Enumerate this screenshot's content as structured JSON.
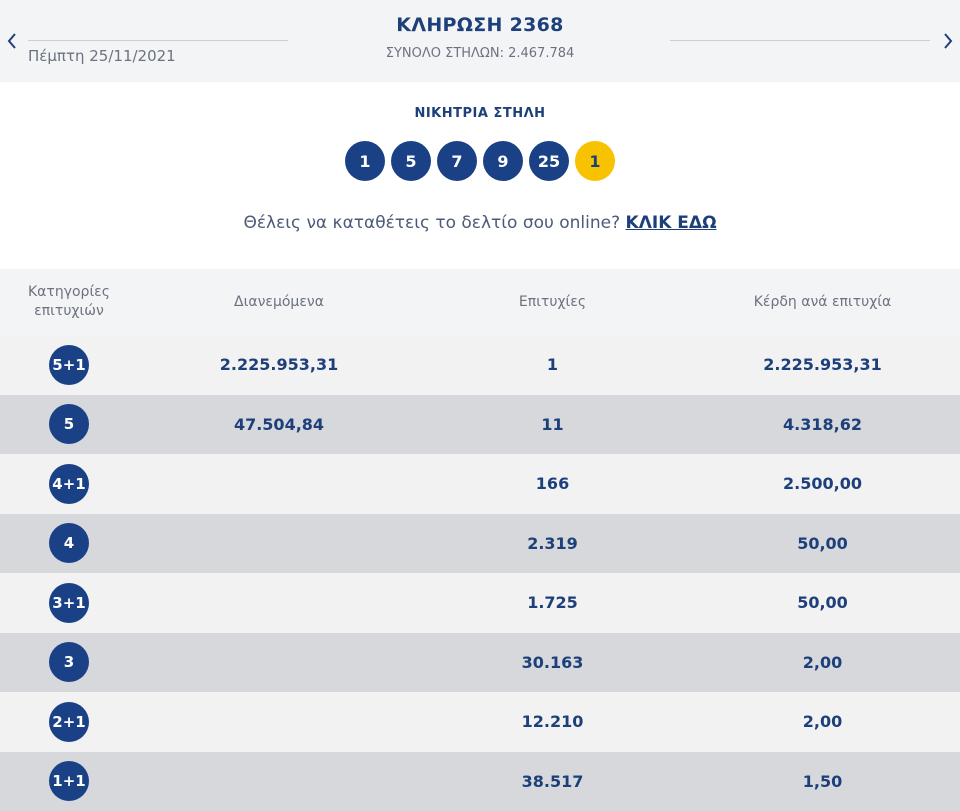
{
  "header": {
    "date": "Πέμπτη 25/11/2021",
    "draw_title": "ΚΛΗΡΩΣΗ 2368",
    "total_columns": "ΣΥΝΟΛΟ ΣΤΗΛΩΝ: 2.467.784",
    "prev_icon": "chevron-left-icon",
    "next_icon": "chevron-right-icon"
  },
  "winning": {
    "label": "ΝΙΚΗΤΡΙΑ ΣΤΗΛΗ",
    "numbers": [
      "1",
      "5",
      "7",
      "9",
      "25"
    ],
    "bonus": "1",
    "colors": {
      "ball": "#1a4185",
      "bonus": "#f7c300"
    }
  },
  "cta": {
    "text": "Θέλεις να καταθέτεις το δελτίο σου online?",
    "link": "ΚΛΙΚ ΕΔΩ"
  },
  "table": {
    "headers": {
      "category_line1": "Κατηγορίες",
      "category_line2": "επιτυχιών",
      "distributed": "Διανεμόμενα",
      "winners": "Επιτυχίες",
      "prize": "Κέρδη ανά επιτυχία"
    },
    "rows": [
      {
        "category": "5+1",
        "distributed": "2.225.953,31",
        "winners": "1",
        "prize": "2.225.953,31"
      },
      {
        "category": "5",
        "distributed": "47.504,84",
        "winners": "11",
        "prize": "4.318,62"
      },
      {
        "category": "4+1",
        "distributed": "",
        "winners": "166",
        "prize": "2.500,00"
      },
      {
        "category": "4",
        "distributed": "",
        "winners": "2.319",
        "prize": "50,00"
      },
      {
        "category": "3+1",
        "distributed": "",
        "winners": "1.725",
        "prize": "50,00"
      },
      {
        "category": "3",
        "distributed": "",
        "winners": "30.163",
        "prize": "2,00"
      },
      {
        "category": "2+1",
        "distributed": "",
        "winners": "12.210",
        "prize": "2,00"
      },
      {
        "category": "1+1",
        "distributed": "",
        "winners": "38.517",
        "prize": "1,50"
      }
    ]
  }
}
